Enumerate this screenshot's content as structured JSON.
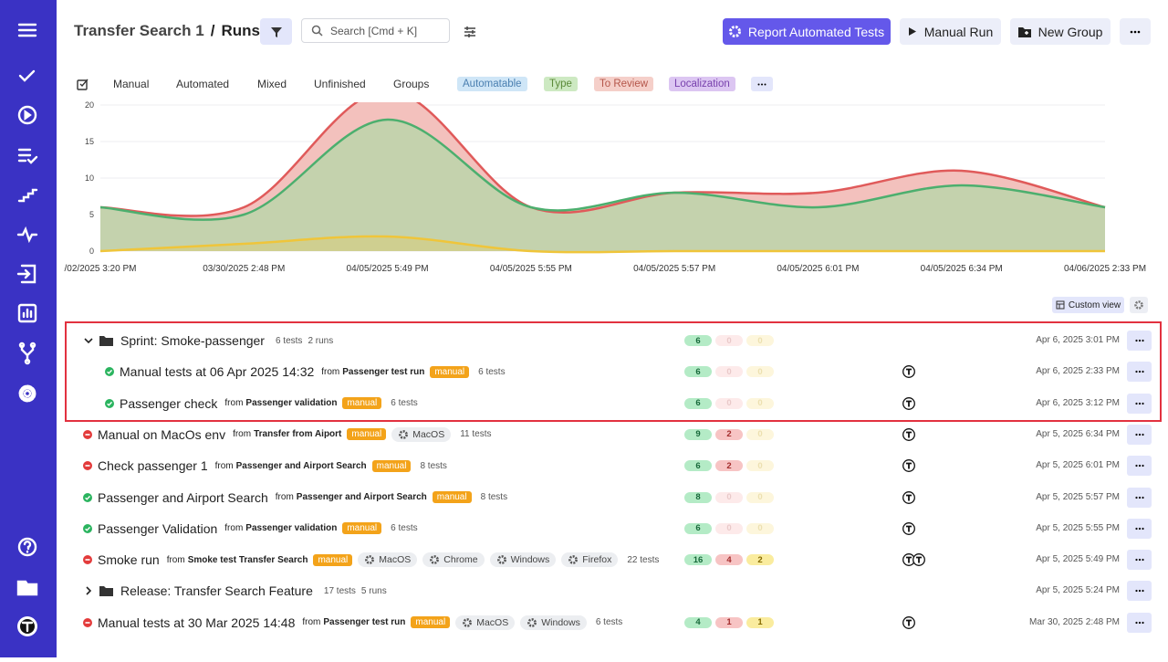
{
  "header": {
    "title": "Transfer Search 1",
    "separator": "/",
    "page": "Runs",
    "search_placeholder": "Search [Cmd + K]",
    "buttons": [
      "Report Automated Tests",
      "Manual Run",
      "New Group"
    ]
  },
  "tabs": [
    "Manual",
    "Automated",
    "Mixed",
    "Unfinished",
    "Groups"
  ],
  "labels": [
    "Automatable",
    "Type",
    "To Review",
    "Localization"
  ],
  "chart_data": {
    "type": "area",
    "categories": [
      "/02/2025 3:20 PM",
      "03/30/2025 2:48 PM",
      "04/05/2025 5:49 PM",
      "04/05/2025 5:55 PM",
      "04/05/2025 5:57 PM",
      "04/05/2025 6:01 PM",
      "04/05/2025 6:34 PM",
      "04/06/2025 2:33 PM"
    ],
    "ylim": [
      0,
      20
    ],
    "yticks": [
      0,
      5,
      10,
      15,
      20
    ],
    "grid": true,
    "series": [
      {
        "color": "#e05a5a",
        "values": [
          6,
          6,
          22,
          6,
          8,
          8,
          11,
          6
        ]
      },
      {
        "color": "#4caf6e",
        "values": [
          6,
          5,
          18,
          6,
          8,
          6,
          9,
          6
        ]
      },
      {
        "color": "#efc53a",
        "values": [
          0,
          1,
          2,
          0,
          0,
          0,
          0,
          0
        ]
      }
    ]
  },
  "custom_view": "Custom view",
  "rows": [
    {
      "kind": "group",
      "expanded": true,
      "title": "Sprint: Smoke-passenger",
      "tests": "6 tests",
      "runs": "2 runs",
      "counts": [
        6,
        0,
        0
      ],
      "date": "Apr 6, 2025 3:01 PM"
    },
    {
      "kind": "run",
      "level": 1,
      "status": "passed",
      "title": "Manual tests at 06 Apr 2025 14:32",
      "from": "from",
      "source": "Passenger test run",
      "badge": "manual",
      "tags": [],
      "tests": "6 tests",
      "counts": [
        6,
        0,
        0
      ],
      "assignees": 1,
      "date": "Apr 6, 2025 2:33 PM"
    },
    {
      "kind": "run",
      "level": 1,
      "status": "passed",
      "title": "Passenger check",
      "from": "from",
      "source": "Passenger validation",
      "badge": "manual",
      "tags": [],
      "tests": "6 tests",
      "counts": [
        6,
        0,
        0
      ],
      "assignees": 1,
      "date": "Apr 6, 2025 3:12 PM"
    },
    {
      "kind": "run",
      "level": 0,
      "status": "failed",
      "title": "Manual on MacOs env",
      "from": "from",
      "source": "Transfer from Aiport",
      "badge": "manual",
      "tags": [
        "MacOS"
      ],
      "tests": "11 tests",
      "counts": [
        9,
        2,
        0
      ],
      "assignees": 1,
      "date": "Apr 5, 2025 6:34 PM"
    },
    {
      "kind": "run",
      "level": 0,
      "status": "failed",
      "title": "Check passenger 1",
      "from": "from",
      "source": "Passenger and Airport Search",
      "badge": "manual",
      "tags": [],
      "tests": "8 tests",
      "counts": [
        6,
        2,
        0
      ],
      "assignees": 1,
      "date": "Apr 5, 2025 6:01 PM"
    },
    {
      "kind": "run",
      "level": 0,
      "status": "passed",
      "title": "Passenger and Airport Search",
      "from": "from",
      "source": "Passenger and Airport Search",
      "badge": "manual",
      "tags": [],
      "tests": "8 tests",
      "counts": [
        8,
        0,
        0
      ],
      "assignees": 1,
      "date": "Apr 5, 2025 5:57 PM"
    },
    {
      "kind": "run",
      "level": 0,
      "status": "passed",
      "title": "Passenger Validation",
      "from": "from",
      "source": "Passenger validation",
      "badge": "manual",
      "tags": [],
      "tests": "6 tests",
      "counts": [
        6,
        0,
        0
      ],
      "assignees": 1,
      "date": "Apr 5, 2025 5:55 PM"
    },
    {
      "kind": "run",
      "level": 0,
      "status": "failed",
      "title": "Smoke run",
      "from": "from",
      "source": "Smoke test Transfer Search",
      "badge": "manual",
      "tags": [
        "MacOS",
        "Chrome",
        "Windows",
        "Firefox"
      ],
      "tests": "22 tests",
      "counts": [
        16,
        4,
        2
      ],
      "assignees": 2,
      "date": "Apr 5, 2025 5:49 PM"
    },
    {
      "kind": "group",
      "expanded": false,
      "title": "Release: Transfer Search Feature",
      "tests": "17 tests",
      "runs": "5 runs",
      "counts": [],
      "date": "Apr 5, 2025 5:24 PM"
    },
    {
      "kind": "run",
      "level": 0,
      "status": "failed",
      "title": "Manual tests at 30 Mar 2025 14:48",
      "from": "from",
      "source": "Passenger test run",
      "badge": "manual",
      "tags": [
        "MacOS",
        "Windows"
      ],
      "tests": "6 tests",
      "counts": [
        4,
        1,
        1
      ],
      "assignees": 1,
      "date": "Mar 30, 2025 2:48 PM"
    }
  ]
}
